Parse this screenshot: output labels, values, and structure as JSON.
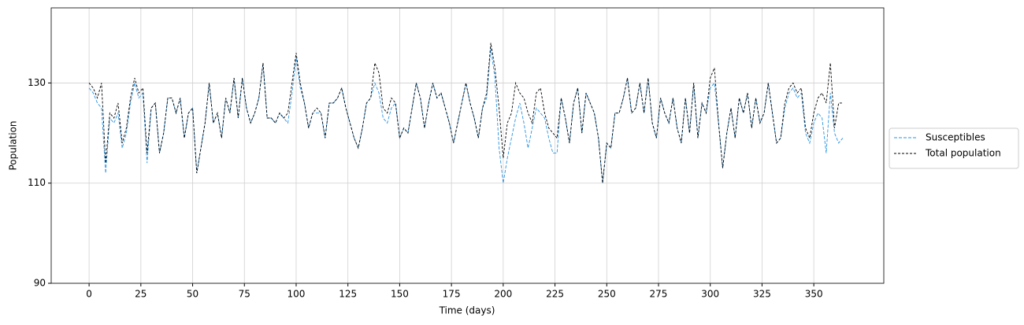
{
  "chart_data": {
    "type": "line",
    "xlabel": "Time (days)",
    "ylabel": "Population",
    "xlim": [
      -18.3,
      383.8
    ],
    "ylim": [
      90,
      145
    ],
    "xticks": [
      0,
      25,
      50,
      75,
      100,
      125,
      150,
      175,
      200,
      225,
      250,
      275,
      300,
      325,
      350
    ],
    "yticks": [
      90,
      110,
      130
    ],
    "grid": true,
    "legend": "right",
    "x": [
      0,
      2,
      4,
      6,
      8,
      10,
      12,
      14,
      16,
      18,
      20,
      22,
      24,
      26,
      28,
      30,
      32,
      34,
      36,
      38,
      40,
      42,
      44,
      46,
      48,
      50,
      52,
      54,
      56,
      58,
      60,
      62,
      64,
      66,
      68,
      70,
      72,
      74,
      76,
      78,
      80,
      82,
      84,
      86,
      88,
      90,
      92,
      94,
      96,
      98,
      100,
      102,
      104,
      106,
      108,
      110,
      112,
      114,
      116,
      118,
      120,
      122,
      124,
      126,
      128,
      130,
      132,
      134,
      136,
      138,
      140,
      142,
      144,
      146,
      148,
      150,
      152,
      154,
      156,
      158,
      160,
      162,
      164,
      166,
      168,
      170,
      172,
      174,
      176,
      178,
      180,
      182,
      184,
      186,
      188,
      190,
      192,
      194,
      196,
      198,
      200,
      202,
      204,
      206,
      208,
      210,
      212,
      214,
      216,
      218,
      220,
      222,
      224,
      226,
      228,
      230,
      232,
      234,
      236,
      238,
      240,
      242,
      244,
      246,
      248,
      250,
      252,
      254,
      256,
      258,
      260,
      262,
      264,
      266,
      268,
      270,
      272,
      274,
      276,
      278,
      280,
      282,
      284,
      286,
      288,
      290,
      292,
      294,
      296,
      298,
      300,
      302,
      304,
      306,
      308,
      310,
      312,
      314,
      316,
      318,
      320,
      322,
      324,
      326,
      328,
      330,
      332,
      334,
      336,
      338,
      340,
      342,
      344,
      346,
      348,
      350,
      352,
      354,
      356,
      358,
      360,
      362,
      364
    ],
    "series": [
      {
        "name": "Susceptibles",
        "color": "#2a93e0",
        "dash": "4,2",
        "values": [
          129,
          128,
          126,
          125,
          112,
          123,
          122,
          124,
          117,
          120,
          126,
          130,
          127,
          128,
          114,
          125,
          126,
          116,
          120,
          127,
          127,
          124,
          127,
          119,
          124,
          125,
          112,
          117,
          122,
          130,
          122,
          124,
          119,
          127,
          124,
          131,
          123,
          131,
          125,
          122,
          124,
          127,
          134,
          123,
          123,
          122,
          124,
          123,
          122,
          128,
          135,
          129,
          126,
          121,
          124,
          124,
          124,
          119,
          126,
          126,
          127,
          129,
          125,
          122,
          119,
          117,
          121,
          126,
          127,
          130,
          128,
          123,
          122,
          125,
          126,
          119,
          121,
          120,
          125,
          130,
          127,
          121,
          126,
          130,
          127,
          128,
          125,
          122,
          118,
          122,
          126,
          130,
          126,
          123,
          119,
          125,
          127,
          137,
          131,
          117,
          110,
          115,
          119,
          123,
          126,
          122,
          117,
          121,
          125,
          124,
          123,
          119,
          116,
          116,
          127,
          123,
          118,
          126,
          129,
          120,
          128,
          126,
          124,
          119,
          110,
          118,
          117,
          124,
          124,
          127,
          131,
          124,
          125,
          130,
          124,
          131,
          122,
          119,
          127,
          124,
          122,
          127,
          121,
          118,
          127,
          120,
          130,
          119,
          126,
          124,
          129,
          130,
          122,
          113,
          120,
          125,
          119,
          127,
          124,
          128,
          121,
          127,
          122,
          124,
          130,
          124,
          118,
          119,
          125,
          128,
          129,
          127,
          128,
          120,
          118,
          122,
          124,
          123,
          116,
          128,
          120,
          118,
          119
        ]
      },
      {
        "name": "Total population",
        "color": "#000000",
        "dash": "3,2",
        "values": [
          130,
          129,
          127,
          130,
          114,
          124,
          123,
          126,
          118,
          121,
          127,
          131,
          128,
          129,
          116,
          125,
          126,
          116,
          120,
          127,
          127,
          124,
          127,
          119,
          124,
          125,
          112,
          117,
          122,
          130,
          122,
          124,
          119,
          127,
          124,
          131,
          123,
          131,
          125,
          122,
          124,
          127,
          134,
          123,
          123,
          122,
          124,
          123,
          124,
          130,
          136,
          130,
          126,
          121,
          124,
          125,
          124,
          119,
          126,
          126,
          127,
          129,
          125,
          122,
          119,
          117,
          121,
          126,
          127,
          134,
          132,
          125,
          124,
          127,
          126,
          119,
          121,
          120,
          125,
          130,
          127,
          121,
          126,
          130,
          127,
          128,
          125,
          122,
          118,
          122,
          126,
          130,
          126,
          123,
          119,
          125,
          128,
          138,
          133,
          125,
          115,
          122,
          124,
          130,
          128,
          127,
          124,
          122,
          128,
          129,
          124,
          121,
          120,
          119,
          127,
          123,
          118,
          126,
          129,
          120,
          128,
          126,
          124,
          119,
          110,
          118,
          117,
          124,
          124,
          127,
          131,
          124,
          125,
          130,
          124,
          131,
          122,
          119,
          127,
          124,
          122,
          127,
          121,
          118,
          127,
          120,
          130,
          119,
          126,
          124,
          131,
          133,
          122,
          113,
          120,
          125,
          119,
          127,
          124,
          128,
          121,
          127,
          122,
          124,
          130,
          124,
          118,
          119,
          126,
          129,
          130,
          128,
          129,
          121,
          119,
          124,
          127,
          128,
          126,
          134,
          121,
          126,
          126
        ]
      }
    ]
  }
}
